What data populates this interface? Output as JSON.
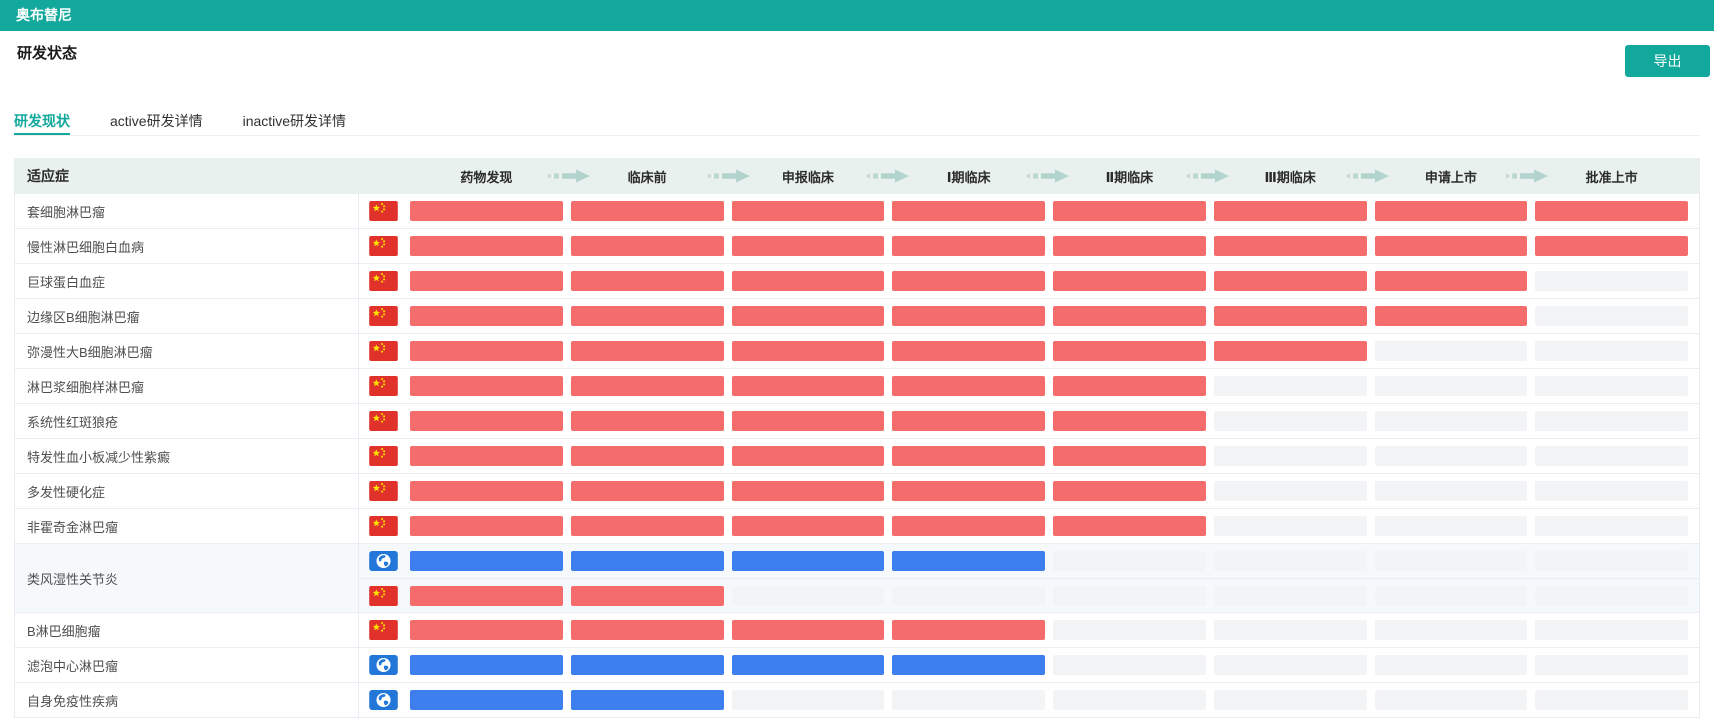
{
  "titlebar": {
    "title": "奥布替尼"
  },
  "header": {
    "title": "研发状态",
    "export_button": "导出"
  },
  "tabs": [
    {
      "label": "研发现状",
      "active": true
    },
    {
      "label": "active研发详情",
      "active": false
    },
    {
      "label": "inactive研发详情",
      "active": false
    }
  ],
  "table": {
    "indication_column_header": "适应症",
    "stages": [
      "药物发现",
      "临床前",
      "申报临床",
      "Ⅰ期临床",
      "Ⅱ期临床",
      "Ⅲ期临床",
      "申请上市",
      "批准上市"
    ],
    "rows": [
      {
        "indication": "套细胞淋巴瘤",
        "highlight": false,
        "tracks": [
          {
            "region": "china",
            "bar_color": "red",
            "stages_done": 8
          }
        ]
      },
      {
        "indication": "慢性淋巴细胞白血病",
        "highlight": false,
        "tracks": [
          {
            "region": "china",
            "bar_color": "red",
            "stages_done": 8
          }
        ]
      },
      {
        "indication": "巨球蛋白血症",
        "highlight": false,
        "tracks": [
          {
            "region": "china",
            "bar_color": "red",
            "stages_done": 7
          }
        ]
      },
      {
        "indication": "边缘区B细胞淋巴瘤",
        "highlight": false,
        "tracks": [
          {
            "region": "china",
            "bar_color": "red",
            "stages_done": 7
          }
        ]
      },
      {
        "indication": "弥漫性大B细胞淋巴瘤",
        "highlight": false,
        "tracks": [
          {
            "region": "china",
            "bar_color": "red",
            "stages_done": 6
          }
        ]
      },
      {
        "indication": "淋巴浆细胞样淋巴瘤",
        "highlight": false,
        "tracks": [
          {
            "region": "china",
            "bar_color": "red",
            "stages_done": 5
          }
        ]
      },
      {
        "indication": "系统性红斑狼疮",
        "highlight": false,
        "tracks": [
          {
            "region": "china",
            "bar_color": "red",
            "stages_done": 5
          }
        ]
      },
      {
        "indication": "特发性血小板减少性紫癜",
        "highlight": false,
        "tracks": [
          {
            "region": "china",
            "bar_color": "red",
            "stages_done": 5
          }
        ]
      },
      {
        "indication": "多发性硬化症",
        "highlight": false,
        "tracks": [
          {
            "region": "china",
            "bar_color": "red",
            "stages_done": 5
          }
        ]
      },
      {
        "indication": "非霍奇金淋巴瘤",
        "highlight": false,
        "tracks": [
          {
            "region": "china",
            "bar_color": "red",
            "stages_done": 5
          }
        ]
      },
      {
        "indication": "类风湿性关节炎",
        "highlight": true,
        "tracks": [
          {
            "region": "global",
            "bar_color": "blue",
            "stages_done": 4
          },
          {
            "region": "china",
            "bar_color": "red",
            "stages_done": 2
          }
        ]
      },
      {
        "indication": "B淋巴细胞瘤",
        "highlight": false,
        "tracks": [
          {
            "region": "china",
            "bar_color": "red",
            "stages_done": 4
          }
        ]
      },
      {
        "indication": "滤泡中心淋巴瘤",
        "highlight": false,
        "tracks": [
          {
            "region": "global",
            "bar_color": "blue",
            "stages_done": 4
          }
        ]
      },
      {
        "indication": "自身免疫性疾病",
        "highlight": false,
        "tracks": [
          {
            "region": "global",
            "bar_color": "blue",
            "stages_done": 2
          }
        ]
      }
    ]
  },
  "icons": {
    "china": "china-flag-icon",
    "global": "globe-icon",
    "stage_separator": "arrow-right-icon"
  },
  "colors": {
    "accent": "#12a89c",
    "header_band": "#e9f1ef",
    "arrow": "#b3d3cd",
    "bar_red": "#f56c6c",
    "bar_blue": "#3d7fef",
    "bar_empty": "#f3f4f5",
    "flag_red": "#e0312b",
    "flag_star": "#ffde00",
    "globe_blue": "#2277d8",
    "row_border": "#e9edf3",
    "highlight_row": "#f6f9fb",
    "footer_strip": "#e3efec"
  }
}
